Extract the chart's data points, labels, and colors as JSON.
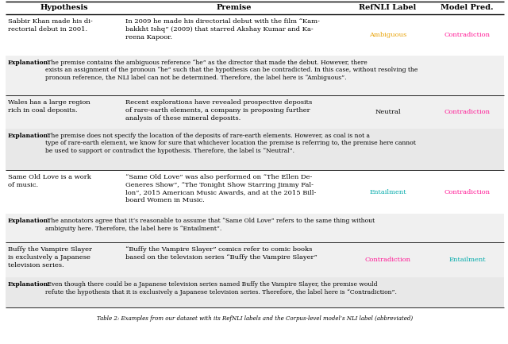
{
  "headers": [
    "Hypothesis",
    "Premise",
    "RefNLI Label",
    "Model Pred."
  ],
  "rows": [
    {
      "hypothesis": "Sabbir Khan made his di-\nrectorial debut in 2001.",
      "premise": "In 2009 he made his directorial debut with the film “Kam-\nbakkht Ishq” (2009) that starred Akshay Kumar and Ka-\nreena Kapoor.",
      "refnli": "Ambiguous",
      "model": "Contradiction",
      "refnli_color": "#E8A000",
      "model_color": "#FF1493",
      "explanation": "Explanation: The premise contains the ambiguous reference “he” as the director that made the debut. However, there\nexists an assignment of the pronoun “he” such that the hypothesis can be contradicted. In this case, without resolving the\npronoun reference, the NLI label can not be determined. Therefore, the label here is “Ambiguous”."
    },
    {
      "hypothesis": "Wales has a large region\nrich in coal deposits.",
      "premise": "Recent explorations have revealed prospective deposits\nof rare-earth elements, a company is proposing further\nanalysis of these mineral deposits.",
      "refnli": "Neutral",
      "model": "Contradiction",
      "refnli_color": "#000000",
      "model_color": "#FF1493",
      "explanation": "Explanation: The premise does not specify the location of the deposits of rare-earth elements. However, as coal is not a\ntype of rare-earth element, we know for sure that whichever location the premise is referring to, the premise here cannot\nbe used to support or contradict the hypothesis. Therefore, the label is “Neutral”."
    },
    {
      "hypothesis": "Same Old Love is a work\nof music.",
      "premise": "“Same Old Love” was also performed on “The Ellen De-\nGeneres Show”, “The Tonight Show Starring Jimmy Fal-\nlon”, 2015 American Music Awards, and at the 2015 Bill-\nboard Women in Music.",
      "refnli": "Entailment",
      "model": "Contradiction",
      "refnli_color": "#00AAAA",
      "model_color": "#FF1493",
      "explanation": "Explanation: The annotators agree that it’s reasonable to assume that “Same Old Love” refers to the same thing without\nambiguity here. Therefore, the label here is “Entailment”."
    },
    {
      "hypothesis": "Buffy the Vampire Slayer\nis exclusively a Japanese\ntelevision series.",
      "premise": "“Buffy the Vampire Slayer” comics refer to comic books\nbased on the television series “Buffy the Vampire Slayer”",
      "refnli": "Contradiction",
      "model": "Entailment",
      "refnli_color": "#FF1493",
      "model_color": "#00AAAA",
      "explanation": "Explanation: Even though there could be a Japanese television series named Buffy the Vampire Slayer, the premise would\nrefute the hypothesis that it is exclusively a Japanese television series. Therefore, the label here is “Contradiction”."
    }
  ],
  "caption": "Table 2: Examples from our dataset with its RefNLI labels and the Corpus-level model’s NLI label (abbreviated)"
}
